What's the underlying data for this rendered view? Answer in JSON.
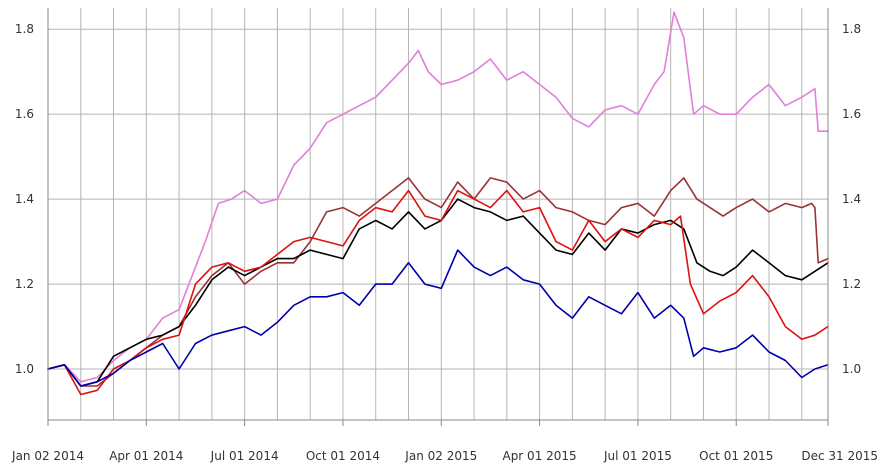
{
  "chart_data": {
    "type": "line",
    "title": "",
    "xlabel": "",
    "ylabel": "",
    "ylim": [
      0.88,
      1.85
    ],
    "y_ticks": [
      1.0,
      1.2,
      1.4,
      1.6,
      1.8
    ],
    "y_tick_labels": [
      "1.0",
      "1.2",
      "1.4",
      "1.6",
      "1.8"
    ],
    "x_index_range": [
      0,
      23.8
    ],
    "x_ticks": [
      0,
      3,
      6,
      9,
      12,
      15,
      18,
      21,
      23.8
    ],
    "x_tick_labels": [
      "Jan 02 2014",
      "Apr 01 2014",
      "Jul 01 2014",
      "Oct 01 2014",
      "Jan 02 2015",
      "Apr 01 2015",
      "Jul 01 2015",
      "Oct 01 2015",
      "Dec 31 2015"
    ],
    "x_grid": [
      0,
      1,
      2,
      3,
      4,
      5,
      6,
      7,
      8,
      9,
      10,
      11,
      12,
      13,
      14,
      15,
      16,
      17,
      18,
      19,
      20,
      21,
      22,
      23
    ],
    "legend": "none",
    "series": [
      {
        "name": "violet",
        "color": "#e080d8",
        "points": [
          [
            0,
            1.0
          ],
          [
            0.5,
            1.01
          ],
          [
            1,
            0.97
          ],
          [
            1.5,
            0.98
          ],
          [
            2,
            1.02
          ],
          [
            2.5,
            1.05
          ],
          [
            3,
            1.07
          ],
          [
            3.5,
            1.12
          ],
          [
            4,
            1.14
          ],
          [
            4.4,
            1.22
          ],
          [
            4.8,
            1.3
          ],
          [
            5.2,
            1.39
          ],
          [
            5.6,
            1.4
          ],
          [
            6,
            1.42
          ],
          [
            6.5,
            1.39
          ],
          [
            7,
            1.4
          ],
          [
            7.5,
            1.48
          ],
          [
            8,
            1.52
          ],
          [
            8.5,
            1.58
          ],
          [
            9,
            1.6
          ],
          [
            9.5,
            1.62
          ],
          [
            10,
            1.64
          ],
          [
            10.5,
            1.68
          ],
          [
            11,
            1.72
          ],
          [
            11.3,
            1.75
          ],
          [
            11.6,
            1.7
          ],
          [
            12,
            1.67
          ],
          [
            12.5,
            1.68
          ],
          [
            13,
            1.7
          ],
          [
            13.5,
            1.73
          ],
          [
            14,
            1.68
          ],
          [
            14.5,
            1.7
          ],
          [
            15,
            1.67
          ],
          [
            15.5,
            1.64
          ],
          [
            16,
            1.59
          ],
          [
            16.5,
            1.57
          ],
          [
            17,
            1.61
          ],
          [
            17.5,
            1.62
          ],
          [
            18,
            1.6
          ],
          [
            18.5,
            1.67
          ],
          [
            18.8,
            1.7
          ],
          [
            19.1,
            1.84
          ],
          [
            19.4,
            1.78
          ],
          [
            19.7,
            1.6
          ],
          [
            20,
            1.62
          ],
          [
            20.5,
            1.6
          ],
          [
            21,
            1.6
          ],
          [
            21.5,
            1.64
          ],
          [
            22,
            1.67
          ],
          [
            22.5,
            1.62
          ],
          [
            23,
            1.64
          ],
          [
            23.4,
            1.66
          ],
          [
            23.5,
            1.56
          ],
          [
            23.8,
            1.56
          ]
        ]
      },
      {
        "name": "brown",
        "color": "#993333",
        "points": [
          [
            0,
            1.0
          ],
          [
            0.5,
            1.01
          ],
          [
            1,
            0.96
          ],
          [
            1.5,
            0.96
          ],
          [
            2,
            0.99
          ],
          [
            2.5,
            1.02
          ],
          [
            3,
            1.05
          ],
          [
            3.5,
            1.08
          ],
          [
            4,
            1.1
          ],
          [
            4.5,
            1.17
          ],
          [
            5,
            1.22
          ],
          [
            5.5,
            1.25
          ],
          [
            6,
            1.2
          ],
          [
            6.5,
            1.23
          ],
          [
            7,
            1.25
          ],
          [
            7.5,
            1.25
          ],
          [
            8,
            1.3
          ],
          [
            8.5,
            1.37
          ],
          [
            9,
            1.38
          ],
          [
            9.5,
            1.36
          ],
          [
            10,
            1.39
          ],
          [
            10.5,
            1.42
          ],
          [
            11,
            1.45
          ],
          [
            11.5,
            1.4
          ],
          [
            12,
            1.38
          ],
          [
            12.5,
            1.44
          ],
          [
            13,
            1.4
          ],
          [
            13.5,
            1.45
          ],
          [
            14,
            1.44
          ],
          [
            14.5,
            1.4
          ],
          [
            15,
            1.42
          ],
          [
            15.5,
            1.38
          ],
          [
            16,
            1.37
          ],
          [
            16.5,
            1.35
          ],
          [
            17,
            1.34
          ],
          [
            17.5,
            1.38
          ],
          [
            18,
            1.39
          ],
          [
            18.5,
            1.36
          ],
          [
            19,
            1.42
          ],
          [
            19.4,
            1.45
          ],
          [
            19.8,
            1.4
          ],
          [
            20.2,
            1.38
          ],
          [
            20.6,
            1.36
          ],
          [
            21,
            1.38
          ],
          [
            21.5,
            1.4
          ],
          [
            22,
            1.37
          ],
          [
            22.5,
            1.39
          ],
          [
            23,
            1.38
          ],
          [
            23.3,
            1.39
          ],
          [
            23.4,
            1.38
          ],
          [
            23.5,
            1.25
          ],
          [
            23.8,
            1.26
          ]
        ]
      },
      {
        "name": "black",
        "color": "#000000",
        "points": [
          [
            0,
            1.0
          ],
          [
            0.5,
            1.01
          ],
          [
            1,
            0.96
          ],
          [
            1.5,
            0.97
          ],
          [
            2,
            1.03
          ],
          [
            2.5,
            1.05
          ],
          [
            3,
            1.07
          ],
          [
            3.5,
            1.08
          ],
          [
            4,
            1.1
          ],
          [
            4.5,
            1.15
          ],
          [
            5,
            1.21
          ],
          [
            5.5,
            1.24
          ],
          [
            6,
            1.22
          ],
          [
            6.5,
            1.24
          ],
          [
            7,
            1.26
          ],
          [
            7.5,
            1.26
          ],
          [
            8,
            1.28
          ],
          [
            8.5,
            1.27
          ],
          [
            9,
            1.26
          ],
          [
            9.5,
            1.33
          ],
          [
            10,
            1.35
          ],
          [
            10.5,
            1.33
          ],
          [
            11,
            1.37
          ],
          [
            11.5,
            1.33
          ],
          [
            12,
            1.35
          ],
          [
            12.5,
            1.4
          ],
          [
            13,
            1.38
          ],
          [
            13.5,
            1.37
          ],
          [
            14,
            1.35
          ],
          [
            14.5,
            1.36
          ],
          [
            15,
            1.32
          ],
          [
            15.5,
            1.28
          ],
          [
            16,
            1.27
          ],
          [
            16.5,
            1.32
          ],
          [
            17,
            1.28
          ],
          [
            17.5,
            1.33
          ],
          [
            18,
            1.32
          ],
          [
            18.5,
            1.34
          ],
          [
            19,
            1.35
          ],
          [
            19.4,
            1.33
          ],
          [
            19.8,
            1.25
          ],
          [
            20.2,
            1.23
          ],
          [
            20.6,
            1.22
          ],
          [
            21,
            1.24
          ],
          [
            21.5,
            1.28
          ],
          [
            22,
            1.25
          ],
          [
            22.5,
            1.22
          ],
          [
            23,
            1.21
          ],
          [
            23.4,
            1.23
          ],
          [
            23.8,
            1.25
          ]
        ]
      },
      {
        "name": "red",
        "color": "#dd1111",
        "points": [
          [
            0,
            1.0
          ],
          [
            0.5,
            1.01
          ],
          [
            1,
            0.94
          ],
          [
            1.5,
            0.95
          ],
          [
            2,
            1.0
          ],
          [
            2.5,
            1.02
          ],
          [
            3,
            1.05
          ],
          [
            3.5,
            1.07
          ],
          [
            4,
            1.08
          ],
          [
            4.5,
            1.2
          ],
          [
            5,
            1.24
          ],
          [
            5.5,
            1.25
          ],
          [
            6,
            1.23
          ],
          [
            6.5,
            1.24
          ],
          [
            7,
            1.27
          ],
          [
            7.5,
            1.3
          ],
          [
            8,
            1.31
          ],
          [
            8.5,
            1.3
          ],
          [
            9,
            1.29
          ],
          [
            9.5,
            1.35
          ],
          [
            10,
            1.38
          ],
          [
            10.5,
            1.37
          ],
          [
            11,
            1.42
          ],
          [
            11.5,
            1.36
          ],
          [
            12,
            1.35
          ],
          [
            12.5,
            1.42
          ],
          [
            13,
            1.4
          ],
          [
            13.5,
            1.38
          ],
          [
            14,
            1.42
          ],
          [
            14.5,
            1.37
          ],
          [
            15,
            1.38
          ],
          [
            15.5,
            1.3
          ],
          [
            16,
            1.28
          ],
          [
            16.5,
            1.35
          ],
          [
            17,
            1.3
          ],
          [
            17.5,
            1.33
          ],
          [
            18,
            1.31
          ],
          [
            18.5,
            1.35
          ],
          [
            19,
            1.34
          ],
          [
            19.3,
            1.36
          ],
          [
            19.6,
            1.2
          ],
          [
            20,
            1.13
          ],
          [
            20.5,
            1.16
          ],
          [
            21,
            1.18
          ],
          [
            21.5,
            1.22
          ],
          [
            22,
            1.17
          ],
          [
            22.5,
            1.1
          ],
          [
            23,
            1.07
          ],
          [
            23.4,
            1.08
          ],
          [
            23.8,
            1.1
          ]
        ]
      },
      {
        "name": "blue",
        "color": "#0000aa",
        "points": [
          [
            0,
            1.0
          ],
          [
            0.5,
            1.01
          ],
          [
            1,
            0.96
          ],
          [
            1.5,
            0.97
          ],
          [
            2,
            0.99
          ],
          [
            2.5,
            1.02
          ],
          [
            3,
            1.04
          ],
          [
            3.5,
            1.06
          ],
          [
            4,
            1.0
          ],
          [
            4.5,
            1.06
          ],
          [
            5,
            1.08
          ],
          [
            5.5,
            1.09
          ],
          [
            6,
            1.1
          ],
          [
            6.5,
            1.08
          ],
          [
            7,
            1.11
          ],
          [
            7.5,
            1.15
          ],
          [
            8,
            1.17
          ],
          [
            8.5,
            1.17
          ],
          [
            9,
            1.18
          ],
          [
            9.5,
            1.15
          ],
          [
            10,
            1.2
          ],
          [
            10.5,
            1.2
          ],
          [
            11,
            1.25
          ],
          [
            11.5,
            1.2
          ],
          [
            12,
            1.19
          ],
          [
            12.5,
            1.28
          ],
          [
            13,
            1.24
          ],
          [
            13.5,
            1.22
          ],
          [
            14,
            1.24
          ],
          [
            14.5,
            1.21
          ],
          [
            15,
            1.2
          ],
          [
            15.5,
            1.15
          ],
          [
            16,
            1.12
          ],
          [
            16.5,
            1.17
          ],
          [
            17,
            1.15
          ],
          [
            17.5,
            1.13
          ],
          [
            18,
            1.18
          ],
          [
            18.5,
            1.12
          ],
          [
            19,
            1.15
          ],
          [
            19.4,
            1.12
          ],
          [
            19.7,
            1.03
          ],
          [
            20,
            1.05
          ],
          [
            20.5,
            1.04
          ],
          [
            21,
            1.05
          ],
          [
            21.5,
            1.08
          ],
          [
            22,
            1.04
          ],
          [
            22.5,
            1.02
          ],
          [
            23,
            0.98
          ],
          [
            23.4,
            1.0
          ],
          [
            23.8,
            1.01
          ]
        ]
      }
    ]
  }
}
